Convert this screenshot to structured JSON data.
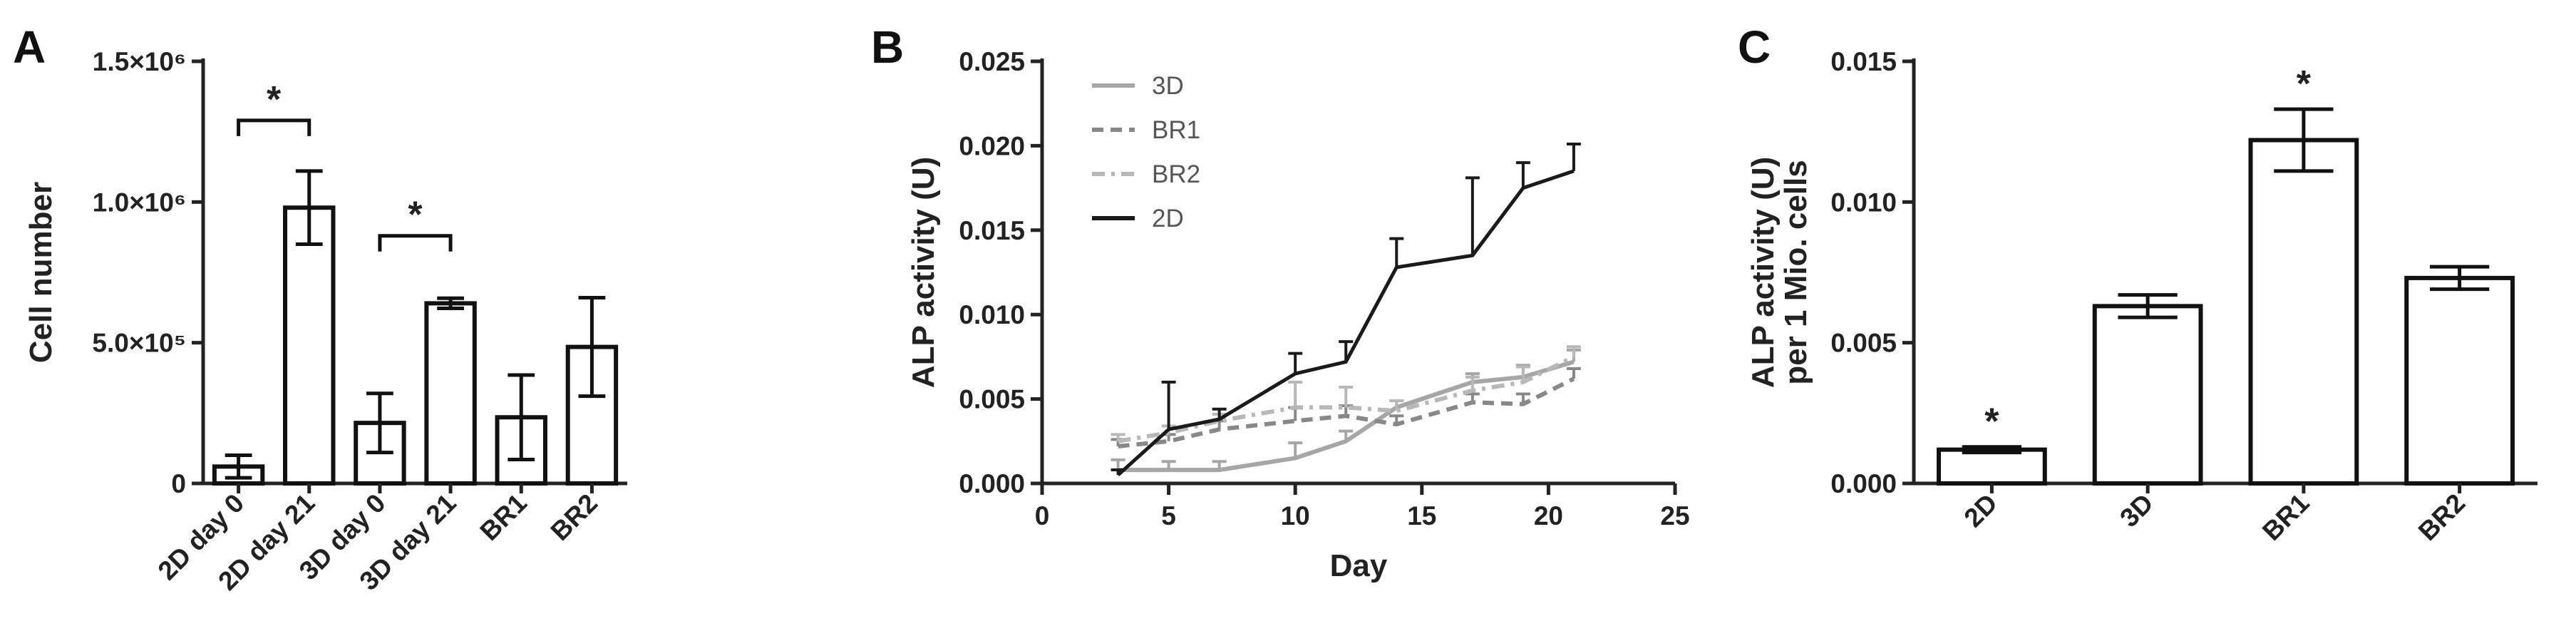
{
  "chart_data": [
    {
      "panel": "A",
      "type": "bar",
      "title": "",
      "xlabel": "",
      "ylabel": "Cell number",
      "ylim": [
        0,
        1500000
      ],
      "yticks": [
        0,
        500000,
        1000000,
        1500000
      ],
      "ytick_labels": [
        "0",
        "5.0×10⁵",
        "1.0×10⁶",
        "1.5×10⁶"
      ],
      "categories": [
        "2D day 0",
        "2D day 21",
        "3D day 0",
        "3D day 21",
        "BR1",
        "BR2"
      ],
      "values": [
        60000,
        980000,
        215000,
        640000,
        235000,
        485000
      ],
      "errors": [
        40000,
        130000,
        105000,
        18000,
        150000,
        175000
      ],
      "significance": [
        {
          "from": 0,
          "to": 1,
          "label": "*",
          "level": 1290000
        },
        {
          "from": 2,
          "to": 3,
          "label": "*",
          "level": 880000
        }
      ]
    },
    {
      "panel": "B",
      "type": "line",
      "title": "",
      "xlabel": "Day",
      "ylabel": "ALP activity (U)",
      "xlim": [
        0,
        25
      ],
      "ylim": [
        0,
        0.025
      ],
      "xticks": [
        0,
        5,
        10,
        15,
        20,
        25
      ],
      "yticks": [
        0,
        0.005,
        0.01,
        0.015,
        0.02,
        0.025
      ],
      "ytick_labels": [
        "0.000",
        "0.005",
        "0.010",
        "0.015",
        "0.020",
        "0.025"
      ],
      "legend_position": "top-left",
      "series": [
        {
          "name": "3D",
          "color": "#a6a6a6",
          "dash": "solid",
          "x": [
            3,
            5,
            7,
            10,
            12,
            14,
            17,
            19,
            21
          ],
          "y": [
            0.0008,
            0.0008,
            0.0008,
            0.0015,
            0.0025,
            0.0045,
            0.006,
            0.0063,
            0.0072
          ],
          "err": [
            0.0006,
            0.0005,
            0.0005,
            0.0009,
            0.0006,
            0.0004,
            0.0005,
            0.0007,
            0.0007
          ]
        },
        {
          "name": "BR1",
          "color": "#888888",
          "dash": "dashed",
          "x": [
            3,
            5,
            7,
            10,
            12,
            14,
            17,
            19,
            21
          ],
          "y": [
            0.0022,
            0.0025,
            0.0032,
            0.0037,
            0.004,
            0.0035,
            0.0048,
            0.0047,
            0.0062
          ],
          "err": [
            0.0004,
            0.0004,
            0.0005,
            0.0008,
            0.0006,
            0.0005,
            0.0005,
            0.0006,
            0.0006
          ]
        },
        {
          "name": "BR2",
          "color": "#b8b8b8",
          "dash": "dashdot",
          "x": [
            3,
            5,
            7,
            10,
            12,
            14,
            17,
            19,
            21
          ],
          "y": [
            0.0025,
            0.003,
            0.0037,
            0.0045,
            0.0045,
            0.0043,
            0.0055,
            0.006,
            0.0075
          ],
          "err": [
            0.0004,
            0.0004,
            0.0004,
            0.0015,
            0.0012,
            0.0006,
            0.0008,
            0.0009,
            0.0006
          ]
        },
        {
          "name": "2D",
          "color": "#1a1a1a",
          "dash": "solid",
          "x": [
            3,
            5,
            7,
            10,
            12,
            14,
            17,
            19,
            21
          ],
          "y": [
            0.0005,
            0.0032,
            0.0038,
            0.0065,
            0.0072,
            0.0128,
            0.0135,
            0.0175,
            0.0185
          ],
          "err": [
            0.0003,
            0.0028,
            0.0006,
            0.0012,
            0.0012,
            0.0017,
            0.0046,
            0.0015,
            0.0016
          ]
        }
      ]
    },
    {
      "panel": "C",
      "type": "bar",
      "title": "",
      "xlabel": "",
      "ylabel": [
        "ALP activity (U)",
        "per 1 Mio. cells"
      ],
      "ylim": [
        0,
        0.015
      ],
      "yticks": [
        0,
        0.005,
        0.01,
        0.015
      ],
      "ytick_labels": [
        "0.000",
        "0.005",
        "0.010",
        "0.015"
      ],
      "categories": [
        "2D",
        "3D",
        "BR1",
        "BR2"
      ],
      "values": [
        0.0012,
        0.0063,
        0.0122,
        0.0073
      ],
      "errors": [
        0.0001,
        0.0004,
        0.0011,
        0.0004
      ],
      "significance": [
        {
          "bar": 0,
          "label": "*"
        },
        {
          "bar": 2,
          "label": "*"
        }
      ]
    }
  ]
}
